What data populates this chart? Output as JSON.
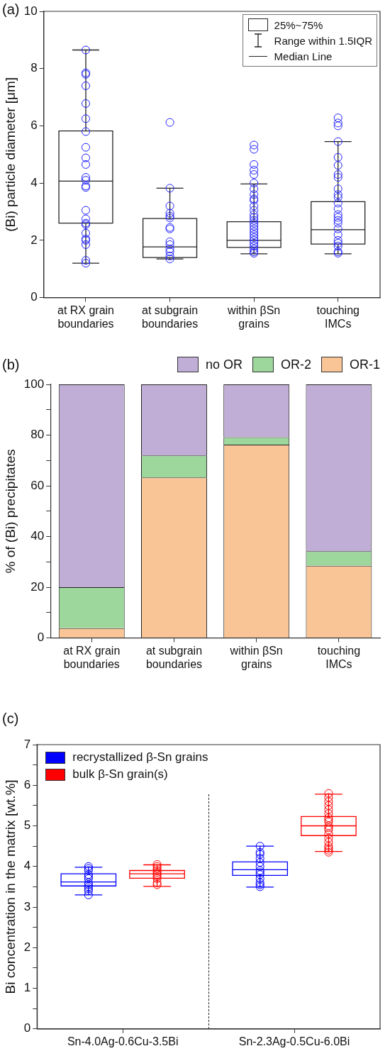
{
  "chart_data": [
    {
      "type": "box",
      "title": "(a)",
      "ylabel": "(Bi) particle diameter [μm]",
      "categories": [
        "at RX grain boundaries",
        "at subgrain boundaries",
        "within βSn grains",
        "touching IMCs"
      ],
      "ylim": [
        0,
        10
      ],
      "yticks": [
        0,
        2,
        4,
        6,
        8,
        10
      ],
      "grid": false,
      "annotations": [
        "25%~75%",
        "Range within 1.5IQR",
        "Median Line"
      ],
      "series": [
        {
          "type": "box",
          "color": "#222222",
          "boxes": [
            {
              "low": 1.2,
              "q1": 2.6,
              "median": 4.07,
              "q3": 5.82,
              "high": 8.65
            },
            {
              "low": 1.35,
              "q1": 1.4,
              "median": 1.77,
              "q3": 2.76,
              "high": 3.82
            },
            {
              "low": 1.53,
              "q1": 1.75,
              "median": 2.0,
              "q3": 2.65,
              "high": 3.97
            },
            {
              "low": 1.53,
              "q1": 1.87,
              "median": 2.37,
              "q3": 3.35,
              "high": 5.45
            }
          ]
        },
        {
          "type": "scatter",
          "color": "#2020ff",
          "x": [
            "at RX grain boundaries",
            "at RX grain boundaries",
            "at RX grain boundaries",
            "at RX grain boundaries",
            "at RX grain boundaries",
            "at RX grain boundaries",
            "at RX grain boundaries",
            "at RX grain boundaries",
            "at RX grain boundaries",
            "at RX grain boundaries",
            "at RX grain boundaries",
            "at RX grain boundaries",
            "at RX grain boundaries",
            "at RX grain boundaries",
            "at RX grain boundaries",
            "at RX grain boundaries",
            "at RX grain boundaries",
            "at RX grain boundaries",
            "at RX grain boundaries",
            "at RX grain boundaries",
            "at RX grain boundaries",
            "at RX grain boundaries",
            "at RX grain boundaries",
            "at RX grain boundaries",
            "at subgrain boundaries",
            "at subgrain boundaries",
            "at subgrain boundaries",
            "at subgrain boundaries",
            "at subgrain boundaries",
            "at subgrain boundaries",
            "at subgrain boundaries",
            "at subgrain boundaries",
            "at subgrain boundaries",
            "at subgrain boundaries",
            "at subgrain boundaries",
            "at subgrain boundaries",
            "at subgrain boundaries",
            "at subgrain boundaries",
            "within βSn grains",
            "within βSn grains",
            "within βSn grains",
            "within βSn grains",
            "within βSn grains",
            "within βSn grains",
            "within βSn grains",
            "within βSn grains",
            "within βSn grains",
            "within βSn grains",
            "within βSn grains",
            "within βSn grains",
            "within βSn grains",
            "within βSn grains",
            "within βSn grains",
            "within βSn grains",
            "within βSn grains",
            "within βSn grains",
            "within βSn grains",
            "within βSn grains",
            "within βSn grains",
            "within βSn grains",
            "within βSn grains",
            "within βSn grains",
            "within βSn grains",
            "within βSn grains",
            "within βSn grains",
            "touching IMCs",
            "touching IMCs",
            "touching IMCs",
            "touching IMCs",
            "touching IMCs",
            "touching IMCs",
            "touching IMCs",
            "touching IMCs",
            "touching IMCs",
            "touching IMCs",
            "touching IMCs",
            "touching IMCs",
            "touching IMCs",
            "touching IMCs",
            "touching IMCs",
            "touching IMCs",
            "touching IMCs",
            "touching IMCs",
            "touching IMCs",
            "touching IMCs",
            "touching IMCs",
            "touching IMCs",
            "touching IMCs",
            "touching IMCs"
          ],
          "values": [
            8.65,
            7.85,
            7.8,
            7.4,
            6.78,
            6.25,
            5.8,
            5.25,
            4.88,
            4.65,
            4.2,
            4.1,
            3.9,
            3.85,
            3.05,
            2.75,
            2.6,
            2.55,
            2.25,
            2.05,
            2.0,
            1.85,
            1.3,
            1.2,
            6.12,
            3.82,
            3.2,
            2.95,
            2.85,
            2.78,
            2.45,
            2.4,
            1.95,
            1.85,
            1.7,
            1.6,
            1.45,
            1.35,
            5.33,
            5.18,
            4.65,
            4.45,
            4.3,
            4.0,
            3.8,
            3.6,
            3.45,
            3.4,
            3.2,
            3.05,
            2.9,
            2.8,
            2.7,
            2.6,
            2.5,
            2.4,
            2.3,
            2.2,
            2.1,
            2.0,
            1.9,
            1.8,
            1.7,
            1.6,
            1.55,
            6.28,
            6.1,
            6.0,
            5.45,
            4.9,
            4.62,
            4.3,
            4.2,
            3.8,
            3.6,
            3.5,
            3.3,
            3.1,
            2.9,
            2.8,
            2.7,
            2.6,
            2.4,
            2.2,
            2.0,
            1.9,
            1.8,
            1.6,
            1.55
          ]
        }
      ]
    },
    {
      "type": "bar",
      "title": "(b)",
      "ylabel": "% of (Bi) precipitates",
      "categories": [
        "at RX grain boundaries",
        "at subgrain boundaries",
        "within βSn grains",
        "touching IMCs"
      ],
      "stacked": true,
      "ylim": [
        0,
        100
      ],
      "yticks": [
        0,
        {
          "value": 10,
          "label": null
        },
        20,
        {
          "value": 30,
          "label": null
        },
        40,
        {
          "value": 50,
          "label": null
        },
        60,
        {
          "value": 70,
          "label": null
        },
        80,
        {
          "value": 90,
          "label": null
        },
        100
      ],
      "grid": false,
      "legend": "top right",
      "series": [
        {
          "name": "OR-1",
          "color": "#f9c596",
          "values": [
            3.9,
            63.3,
            76.2,
            28.5
          ]
        },
        {
          "name": "OR-2",
          "color": "#9dd79c",
          "values": [
            16.1,
            8.7,
            3.0,
            5.7
          ]
        },
        {
          "name": "no OR",
          "color": "#c1aed6",
          "values": [
            80.0,
            28.0,
            20.8,
            65.8
          ]
        }
      ]
    },
    {
      "type": "box",
      "title": "(c)",
      "ylabel": "Bi concentration in the matrix [wt.%]",
      "categories": [
        "Sn-4.0Ag-0.6Cu-3.5Bi",
        "Sn-2.3Ag-0.5Cu-6.0Bi"
      ],
      "ylim": [
        0,
        7
      ],
      "yticks": [
        0,
        {
          "value": 0.5,
          "label": null
        },
        1,
        {
          "value": 1.5,
          "label": null
        },
        2,
        {
          "value": 2.5,
          "label": null
        },
        3,
        {
          "value": 3.5,
          "label": null
        },
        4,
        {
          "value": 4.5,
          "label": null
        },
        5,
        {
          "value": 5.5,
          "label": null
        },
        6,
        {
          "value": 6.5,
          "label": null
        },
        7
      ],
      "grid": false,
      "legend": "top left",
      "series": [
        {
          "type": "box",
          "name": "recrystallized β-Sn grains",
          "color": "#0000ff",
          "boxes": [
            {
              "low": 3.3,
              "q1": 3.52,
              "median": 3.62,
              "q3": 3.82,
              "high": 3.98
            },
            {
              "low": 3.49,
              "q1": 3.78,
              "median": 3.92,
              "q3": 4.11,
              "high": 4.5
            }
          ]
        },
        {
          "type": "box",
          "name": "bulk β-Sn grain(s)",
          "color": "#ff0000",
          "boxes": [
            {
              "low": 3.51,
              "q1": 3.71,
              "median": 3.82,
              "q3": 3.9,
              "high": 4.04
            },
            {
              "low": 4.37,
              "q1": 4.76,
              "median": 5.0,
              "q3": 5.23,
              "high": 5.78
            }
          ]
        },
        {
          "type": "scatter",
          "color": "#0000ff",
          "x": [
            "Sn-4.0Ag-0.6Cu-3.5Bi",
            "Sn-4.0Ag-0.6Cu-3.5Bi",
            "Sn-4.0Ag-0.6Cu-3.5Bi",
            "Sn-4.0Ag-0.6Cu-3.5Bi",
            "Sn-4.0Ag-0.6Cu-3.5Bi",
            "Sn-4.0Ag-0.6Cu-3.5Bi",
            "Sn-4.0Ag-0.6Cu-3.5Bi",
            "Sn-4.0Ag-0.6Cu-3.5Bi",
            "Sn-4.0Ag-0.6Cu-3.5Bi",
            "Sn-4.0Ag-0.6Cu-3.5Bi",
            "Sn-4.0Ag-0.6Cu-3.5Bi",
            "Sn-4.0Ag-0.6Cu-3.5Bi",
            "Sn-2.3Ag-0.5Cu-6.0Bi",
            "Sn-2.3Ag-0.5Cu-6.0Bi",
            "Sn-2.3Ag-0.5Cu-6.0Bi",
            "Sn-2.3Ag-0.5Cu-6.0Bi",
            "Sn-2.3Ag-0.5Cu-6.0Bi",
            "Sn-2.3Ag-0.5Cu-6.0Bi",
            "Sn-2.3Ag-0.5Cu-6.0Bi",
            "Sn-2.3Ag-0.5Cu-6.0Bi",
            "Sn-2.3Ag-0.5Cu-6.0Bi",
            "Sn-2.3Ag-0.5Cu-6.0Bi",
            "Sn-2.3Ag-0.5Cu-6.0Bi",
            "Sn-2.3Ag-0.5Cu-6.0Bi",
            "Sn-2.3Ag-0.5Cu-6.0Bi"
          ],
          "values": [
            4.0,
            3.95,
            3.9,
            3.8,
            3.75,
            3.7,
            3.6,
            3.55,
            3.5,
            3.45,
            3.4,
            3.3,
            4.5,
            4.35,
            4.3,
            4.2,
            4.1,
            4.0,
            3.9,
            3.85,
            3.8,
            3.7,
            3.6,
            3.55,
            3.5
          ]
        },
        {
          "type": "scatter",
          "color": "#ff0000",
          "x": [
            "Sn-4.0Ag-0.6Cu-3.5Bi",
            "Sn-4.0Ag-0.6Cu-3.5Bi",
            "Sn-4.0Ag-0.6Cu-3.5Bi",
            "Sn-4.0Ag-0.6Cu-3.5Bi",
            "Sn-4.0Ag-0.6Cu-3.5Bi",
            "Sn-4.0Ag-0.6Cu-3.5Bi",
            "Sn-4.0Ag-0.6Cu-3.5Bi",
            "Sn-4.0Ag-0.6Cu-3.5Bi",
            "Sn-4.0Ag-0.6Cu-3.5Bi",
            "Sn-4.0Ag-0.6Cu-3.5Bi",
            "Sn-2.3Ag-0.5Cu-6.0Bi",
            "Sn-2.3Ag-0.5Cu-6.0Bi",
            "Sn-2.3Ag-0.5Cu-6.0Bi",
            "Sn-2.3Ag-0.5Cu-6.0Bi",
            "Sn-2.3Ag-0.5Cu-6.0Bi",
            "Sn-2.3Ag-0.5Cu-6.0Bi",
            "Sn-2.3Ag-0.5Cu-6.0Bi",
            "Sn-2.3Ag-0.5Cu-6.0Bi",
            "Sn-2.3Ag-0.5Cu-6.0Bi",
            "Sn-2.3Ag-0.5Cu-6.0Bi",
            "Sn-2.3Ag-0.5Cu-6.0Bi",
            "Sn-2.3Ag-0.5Cu-6.0Bi",
            "Sn-2.3Ag-0.5Cu-6.0Bi",
            "Sn-2.3Ag-0.5Cu-6.0Bi",
            "Sn-2.3Ag-0.5Cu-6.0Bi",
            "Sn-2.3Ag-0.5Cu-6.0Bi",
            "Sn-2.3Ag-0.5Cu-6.0Bi",
            "Sn-2.3Ag-0.5Cu-6.0Bi",
            "Sn-2.3Ag-0.5Cu-6.0Bi"
          ],
          "values": [
            4.05,
            4.0,
            3.95,
            3.9,
            3.85,
            3.8,
            3.75,
            3.7,
            3.6,
            3.55,
            5.8,
            5.7,
            5.6,
            5.5,
            5.4,
            5.3,
            5.2,
            5.15,
            5.1,
            5.0,
            4.95,
            4.9,
            4.8,
            4.7,
            4.6,
            4.5,
            4.45,
            4.4,
            4.35
          ]
        }
      ]
    }
  ]
}
